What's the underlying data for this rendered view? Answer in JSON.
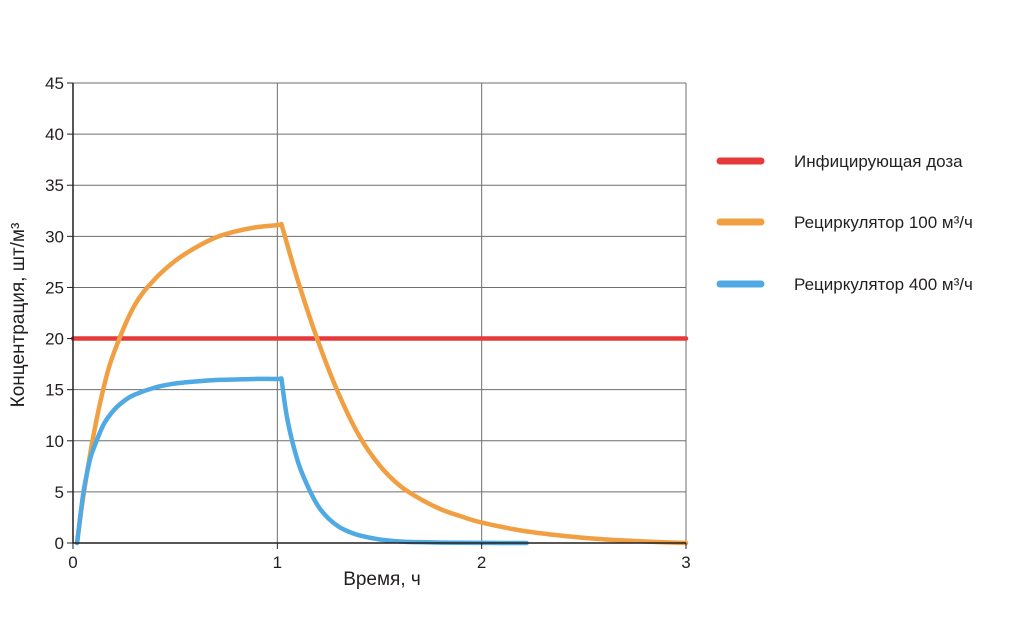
{
  "chart_data": {
    "type": "line",
    "xlabel": "Время, ч",
    "ylabel": "Концентрация, шт/м³",
    "xlim": [
      0,
      3
    ],
    "ylim": [
      0,
      45
    ],
    "x_ticks": [
      "0",
      "1",
      "2",
      "3"
    ],
    "y_ticks": [
      "0",
      "5",
      "10",
      "15",
      "20",
      "25",
      "30",
      "35",
      "40",
      "45"
    ],
    "grid": true,
    "legend_position": "right",
    "series": [
      {
        "name": "Инфицирующая доза",
        "color": "#e63a3a",
        "x": [
          0,
          3
        ],
        "y": [
          20,
          20
        ]
      },
      {
        "name": "Рециркулятор 100 м³/ч",
        "color": "#f0a042",
        "x": [
          0.02,
          0.05,
          0.1,
          0.15,
          0.2,
          0.3,
          0.4,
          0.5,
          0.6,
          0.7,
          0.8,
          0.9,
          1.0,
          1.02,
          1.1,
          1.2,
          1.3,
          1.4,
          1.5,
          1.6,
          1.7,
          1.8,
          1.9,
          2.0,
          2.2,
          2.4,
          2.6,
          2.8,
          3.0
        ],
        "y": [
          0,
          4.5,
          10.5,
          15.2,
          18.6,
          23.2,
          25.8,
          27.6,
          28.9,
          29.9,
          30.5,
          30.9,
          31.1,
          31.2,
          25.7,
          19.7,
          14.6,
          10.5,
          7.6,
          5.6,
          4.3,
          3.3,
          2.6,
          2.0,
          1.2,
          0.7,
          0.35,
          0.15,
          0.0
        ]
      },
      {
        "name": "Рециркулятор 400 м³/ч",
        "color": "#4fa9e3",
        "x": [
          0.02,
          0.05,
          0.08,
          0.1,
          0.15,
          0.2,
          0.25,
          0.3,
          0.4,
          0.5,
          0.6,
          0.7,
          0.8,
          0.9,
          1.0,
          1.02,
          1.05,
          1.1,
          1.15,
          1.2,
          1.25,
          1.3,
          1.35,
          1.4,
          1.5,
          1.6,
          1.7,
          1.8,
          1.9,
          2.0,
          2.1,
          2.22
        ],
        "y": [
          0,
          4.8,
          7.9,
          9.2,
          11.6,
          13.0,
          13.9,
          14.5,
          15.2,
          15.6,
          15.8,
          15.95,
          16.0,
          16.05,
          16.05,
          16.1,
          12.0,
          8.0,
          5.5,
          3.6,
          2.4,
          1.6,
          1.1,
          0.75,
          0.35,
          0.15,
          0.08,
          0.04,
          0.02,
          0.01,
          0.0,
          0.0
        ]
      }
    ]
  }
}
